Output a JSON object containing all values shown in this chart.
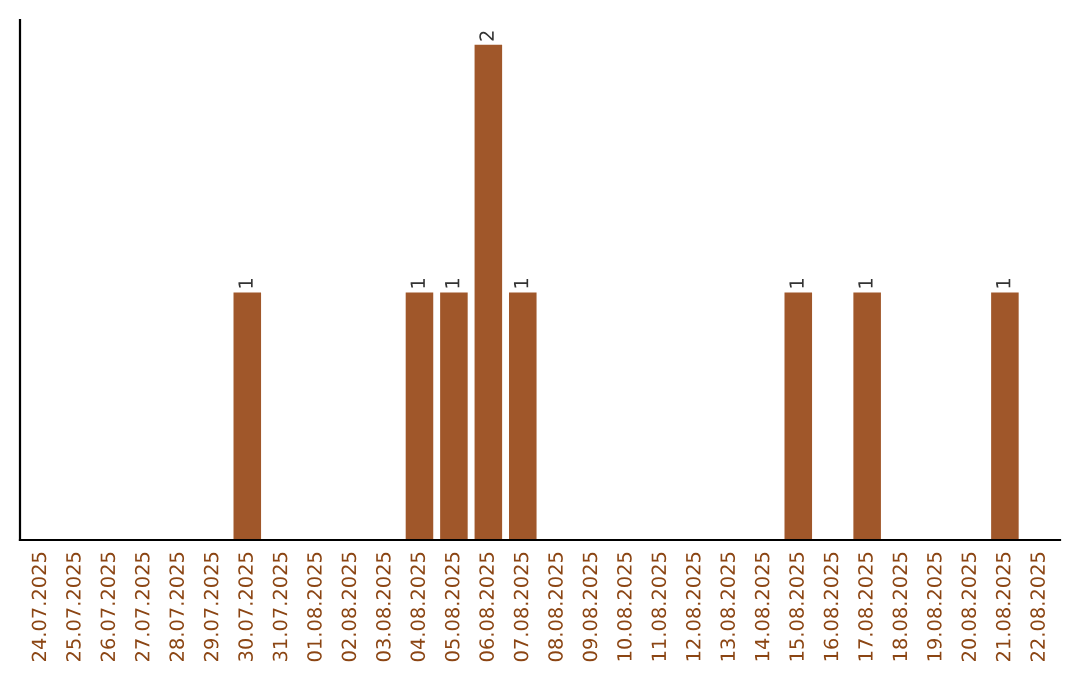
{
  "chart_data": {
    "type": "bar",
    "categories": [
      "24.07.2025",
      "25.07.2025",
      "26.07.2025",
      "27.07.2025",
      "28.07.2025",
      "29.07.2025",
      "30.07.2025",
      "31.07.2025",
      "01.08.2025",
      "02.08.2025",
      "03.08.2025",
      "04.08.2025",
      "05.08.2025",
      "06.08.2025",
      "07.08.2025",
      "08.08.2025",
      "09.08.2025",
      "10.08.2025",
      "11.08.2025",
      "12.08.2025",
      "13.08.2025",
      "14.08.2025",
      "15.08.2025",
      "16.08.2025",
      "17.08.2025",
      "18.08.2025",
      "19.08.2025",
      "20.08.2025",
      "21.08.2025",
      "22.08.2025"
    ],
    "values": [
      0,
      0,
      0,
      0,
      0,
      0,
      1,
      0,
      0,
      0,
      0,
      1,
      1,
      2,
      1,
      0,
      0,
      0,
      0,
      0,
      0,
      0,
      1,
      0,
      1,
      0,
      0,
      0,
      1,
      0
    ],
    "value_labels": [
      null,
      null,
      null,
      null,
      null,
      null,
      "1",
      null,
      null,
      null,
      null,
      "1",
      "1",
      "2",
      "1",
      null,
      null,
      null,
      null,
      null,
      null,
      null,
      "1",
      null,
      "1",
      null,
      null,
      null,
      "1",
      null
    ],
    "color": "#a0572a",
    "tick_labels": "x",
    "grid": false,
    "legend": false
  }
}
